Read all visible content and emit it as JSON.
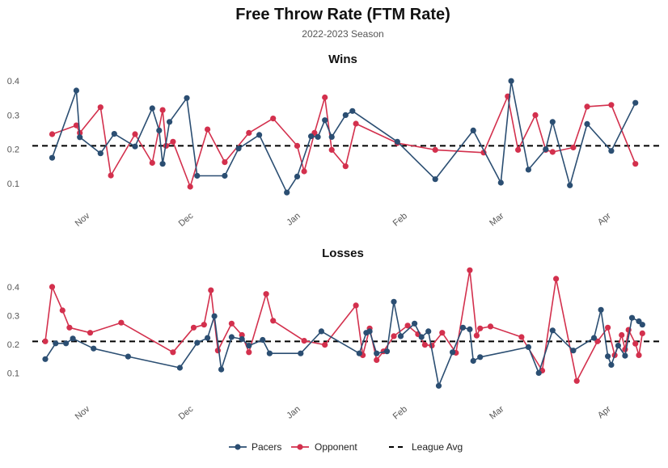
{
  "chart_data": {
    "type": "line",
    "title": "Free Throw Rate (FTM Rate)",
    "subtitle": "2022-2023 Season",
    "league_avg": 0.21,
    "x_ticks": [
      "Nov",
      "Dec",
      "Jan",
      "Feb",
      "Mar",
      "Apr"
    ],
    "y_ticks": [
      0.1,
      0.2,
      0.3,
      0.4
    ],
    "grid": false,
    "legend": {
      "position": "bottom",
      "items": [
        {
          "label": "Pacers",
          "color": "#2b4e72",
          "style": "line-point"
        },
        {
          "label": "Opponent",
          "color": "#d3304d",
          "style": "line-point"
        },
        {
          "label": "League Avg",
          "color": "#000000",
          "style": "dashed"
        }
      ]
    },
    "panels": [
      {
        "title": "Wins",
        "xlim": [
          "2022-10-19",
          "2023-04-09"
        ],
        "ylim": [
          0.045,
          0.41
        ],
        "series": [
          {
            "name": "Pacers",
            "color": "#2b4e72",
            "points": [
              [
                "2022-10-21",
                0.175
              ],
              [
                "2022-10-28",
                0.372
              ],
              [
                "2022-10-29",
                0.235
              ],
              [
                "2022-11-04",
                0.188
              ],
              [
                "2022-11-08",
                0.245
              ],
              [
                "2022-11-14",
                0.208
              ],
              [
                "2022-11-19",
                0.32
              ],
              [
                "2022-11-21",
                0.255
              ],
              [
                "2022-11-22",
                0.157
              ],
              [
                "2022-11-24",
                0.28
              ],
              [
                "2022-11-29",
                0.35
              ],
              [
                "2022-12-02",
                0.122
              ],
              [
                "2022-12-10",
                0.122
              ],
              [
                "2022-12-14",
                0.202
              ],
              [
                "2022-12-20",
                0.242
              ],
              [
                "2022-12-28",
                0.073
              ],
              [
                "2022-12-31",
                0.12
              ],
              [
                "2023-01-04",
                0.238
              ],
              [
                "2023-01-06",
                0.236
              ],
              [
                "2023-01-08",
                0.285
              ],
              [
                "2023-01-10",
                0.236
              ],
              [
                "2023-01-14",
                0.3
              ],
              [
                "2023-01-16",
                0.312
              ],
              [
                "2023-01-29",
                0.222
              ],
              [
                "2023-02-09",
                0.112
              ],
              [
                "2023-02-20",
                0.255
              ],
              [
                "2023-02-28",
                0.102
              ],
              [
                "2023-03-03",
                0.4
              ],
              [
                "2023-03-08",
                0.14
              ],
              [
                "2023-03-13",
                0.2
              ],
              [
                "2023-03-15",
                0.28
              ],
              [
                "2023-03-20",
                0.094
              ],
              [
                "2023-03-25",
                0.274
              ],
              [
                "2023-04-01",
                0.195
              ],
              [
                "2023-04-08",
                0.336
              ]
            ]
          },
          {
            "name": "Opponent",
            "color": "#d3304d",
            "points": [
              [
                "2022-10-21",
                0.244
              ],
              [
                "2022-10-28",
                0.27
              ],
              [
                "2022-10-29",
                0.248
              ],
              [
                "2022-11-04",
                0.323
              ],
              [
                "2022-11-07",
                0.123
              ],
              [
                "2022-11-14",
                0.244
              ],
              [
                "2022-11-19",
                0.16
              ],
              [
                "2022-11-22",
                0.315
              ],
              [
                "2022-11-23",
                0.21
              ],
              [
                "2022-11-25",
                0.222
              ],
              [
                "2022-11-30",
                0.09
              ],
              [
                "2022-12-05",
                0.258
              ],
              [
                "2022-12-10",
                0.162
              ],
              [
                "2022-12-17",
                0.248
              ],
              [
                "2022-12-24",
                0.29
              ],
              [
                "2022-12-31",
                0.21
              ],
              [
                "2023-01-02",
                0.135
              ],
              [
                "2023-01-05",
                0.248
              ],
              [
                "2023-01-08",
                0.352
              ],
              [
                "2023-01-10",
                0.198
              ],
              [
                "2023-01-14",
                0.15
              ],
              [
                "2023-01-17",
                0.275
              ],
              [
                "2023-01-29",
                0.218
              ],
              [
                "2023-02-09",
                0.198
              ],
              [
                "2023-02-23",
                0.19
              ],
              [
                "2023-03-02",
                0.355
              ],
              [
                "2023-03-05",
                0.198
              ],
              [
                "2023-03-10",
                0.3
              ],
              [
                "2023-03-13",
                0.198
              ],
              [
                "2023-03-15",
                0.192
              ],
              [
                "2023-03-21",
                0.205
              ],
              [
                "2023-03-25",
                0.325
              ],
              [
                "2023-04-01",
                0.33
              ],
              [
                "2023-04-08",
                0.157
              ]
            ]
          }
        ]
      },
      {
        "title": "Losses",
        "xlim": [
          "2022-10-19",
          "2023-04-09"
        ],
        "ylim": [
          0.025,
          0.47
        ],
        "series": [
          {
            "name": "Pacers",
            "color": "#2b4e72",
            "points": [
              [
                "2022-10-19",
                0.148
              ],
              [
                "2022-10-22",
                0.203
              ],
              [
                "2022-10-25",
                0.203
              ],
              [
                "2022-10-27",
                0.22
              ],
              [
                "2022-11-02",
                0.185
              ],
              [
                "2022-11-12",
                0.157
              ],
              [
                "2022-11-27",
                0.118
              ],
              [
                "2022-12-02",
                0.205
              ],
              [
                "2022-12-05",
                0.222
              ],
              [
                "2022-12-07",
                0.298
              ],
              [
                "2022-12-09",
                0.112
              ],
              [
                "2022-12-12",
                0.225
              ],
              [
                "2022-12-15",
                0.218
              ],
              [
                "2022-12-17",
                0.195
              ],
              [
                "2022-12-21",
                0.215
              ],
              [
                "2022-12-23",
                0.168
              ],
              [
                "2023-01-01",
                0.168
              ],
              [
                "2023-01-07",
                0.245
              ],
              [
                "2023-01-18",
                0.168
              ],
              [
                "2023-01-20",
                0.24
              ],
              [
                "2023-01-21",
                0.245
              ],
              [
                "2023-01-23",
                0.168
              ],
              [
                "2023-01-26",
                0.175
              ],
              [
                "2023-01-28",
                0.348
              ],
              [
                "2023-01-30",
                0.228
              ],
              [
                "2023-02-03",
                0.272
              ],
              [
                "2023-02-05",
                0.225
              ],
              [
                "2023-02-07",
                0.245
              ],
              [
                "2023-02-10",
                0.055
              ],
              [
                "2023-02-14",
                0.172
              ],
              [
                "2023-02-17",
                0.258
              ],
              [
                "2023-02-19",
                0.252
              ],
              [
                "2023-02-20",
                0.142
              ],
              [
                "2023-02-22",
                0.155
              ],
              [
                "2023-03-08",
                0.19
              ],
              [
                "2023-03-11",
                0.1
              ],
              [
                "2023-03-15",
                0.248
              ],
              [
                "2023-03-21",
                0.178
              ],
              [
                "2023-03-27",
                0.222
              ],
              [
                "2023-03-29",
                0.32
              ],
              [
                "2023-03-31",
                0.158
              ],
              [
                "2023-04-01",
                0.128
              ],
              [
                "2023-04-03",
                0.195
              ],
              [
                "2023-04-05",
                0.16
              ],
              [
                "2023-04-07",
                0.292
              ],
              [
                "2023-04-09",
                0.28
              ],
              [
                "2023-04-10",
                0.268
              ]
            ]
          },
          {
            "name": "Opponent",
            "color": "#d3304d",
            "points": [
              [
                "2022-10-19",
                0.21
              ],
              [
                "2022-10-21",
                0.4
              ],
              [
                "2022-10-24",
                0.318
              ],
              [
                "2022-10-26",
                0.258
              ],
              [
                "2022-11-01",
                0.24
              ],
              [
                "2022-11-10",
                0.275
              ],
              [
                "2022-11-25",
                0.172
              ],
              [
                "2022-12-01",
                0.258
              ],
              [
                "2022-12-04",
                0.268
              ],
              [
                "2022-12-06",
                0.388
              ],
              [
                "2022-12-08",
                0.178
              ],
              [
                "2022-12-12",
                0.272
              ],
              [
                "2022-12-15",
                0.232
              ],
              [
                "2022-12-17",
                0.172
              ],
              [
                "2022-12-22",
                0.375
              ],
              [
                "2022-12-24",
                0.282
              ],
              [
                "2023-01-02",
                0.212
              ],
              [
                "2023-01-08",
                0.198
              ],
              [
                "2023-01-17",
                0.335
              ],
              [
                "2023-01-19",
                0.162
              ],
              [
                "2023-01-21",
                0.255
              ],
              [
                "2023-01-23",
                0.145
              ],
              [
                "2023-01-25",
                0.175
              ],
              [
                "2023-01-28",
                0.228
              ],
              [
                "2023-02-01",
                0.265
              ],
              [
                "2023-02-04",
                0.235
              ],
              [
                "2023-02-06",
                0.198
              ],
              [
                "2023-02-08",
                0.195
              ],
              [
                "2023-02-11",
                0.24
              ],
              [
                "2023-02-15",
                0.17
              ],
              [
                "2023-02-19",
                0.458
              ],
              [
                "2023-02-21",
                0.23
              ],
              [
                "2023-02-22",
                0.255
              ],
              [
                "2023-02-25",
                0.262
              ],
              [
                "2023-03-06",
                0.225
              ],
              [
                "2023-03-12",
                0.108
              ],
              [
                "2023-03-16",
                0.428
              ],
              [
                "2023-03-22",
                0.072
              ],
              [
                "2023-03-28",
                0.21
              ],
              [
                "2023-03-31",
                0.258
              ],
              [
                "2023-04-02",
                0.162
              ],
              [
                "2023-04-04",
                0.232
              ],
              [
                "2023-04-05",
                0.182
              ],
              [
                "2023-04-06",
                0.25
              ],
              [
                "2023-04-08",
                0.202
              ],
              [
                "2023-04-09",
                0.162
              ],
              [
                "2023-04-10",
                0.238
              ]
            ]
          }
        ]
      }
    ]
  }
}
